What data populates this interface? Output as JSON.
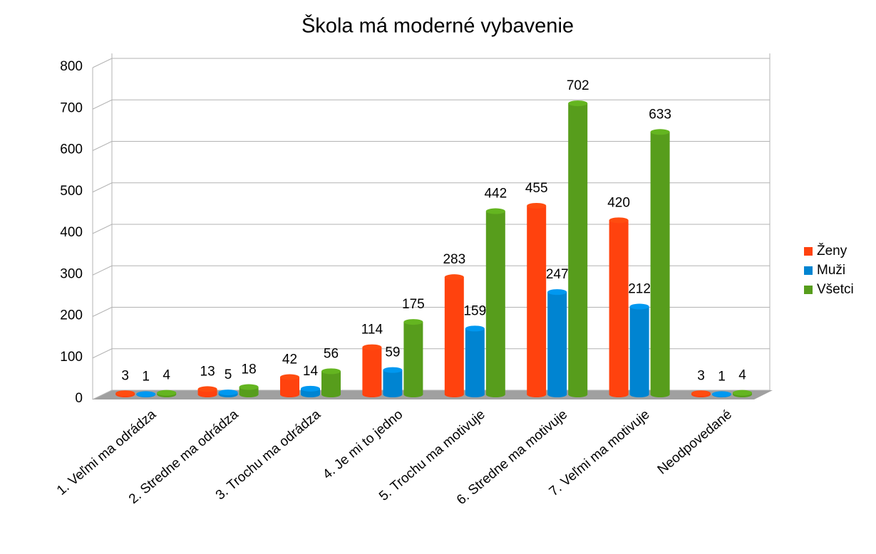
{
  "chart_data": {
    "type": "bar",
    "title": "Škola má moderné vybavenie",
    "categories": [
      "1. Veľmi ma odrádza",
      "2. Stredne ma odrádza",
      "3. Trochu ma odrádza",
      "4. Je mi to jedno",
      "5. Trochu ma motivuje",
      "6. Stredne ma motivuje",
      "7. Veľmi ma motivuje",
      "Neodpovedané"
    ],
    "series": [
      {
        "name": "Ženy",
        "color": "#ff420e",
        "values": [
          3,
          13,
          42,
          114,
          283,
          455,
          420,
          3
        ]
      },
      {
        "name": "Muži",
        "color": "#0084d1",
        "values": [
          1,
          5,
          14,
          59,
          159,
          247,
          212,
          1
        ]
      },
      {
        "name": "Všetci",
        "color": "#579d1c",
        "values": [
          4,
          18,
          56,
          175,
          442,
          702,
          633,
          4
        ]
      }
    ],
    "ylim": [
      0,
      800
    ],
    "yticks": [
      0,
      100,
      200,
      300,
      400,
      500,
      600,
      700,
      800
    ],
    "grid": true,
    "legend": "right"
  }
}
